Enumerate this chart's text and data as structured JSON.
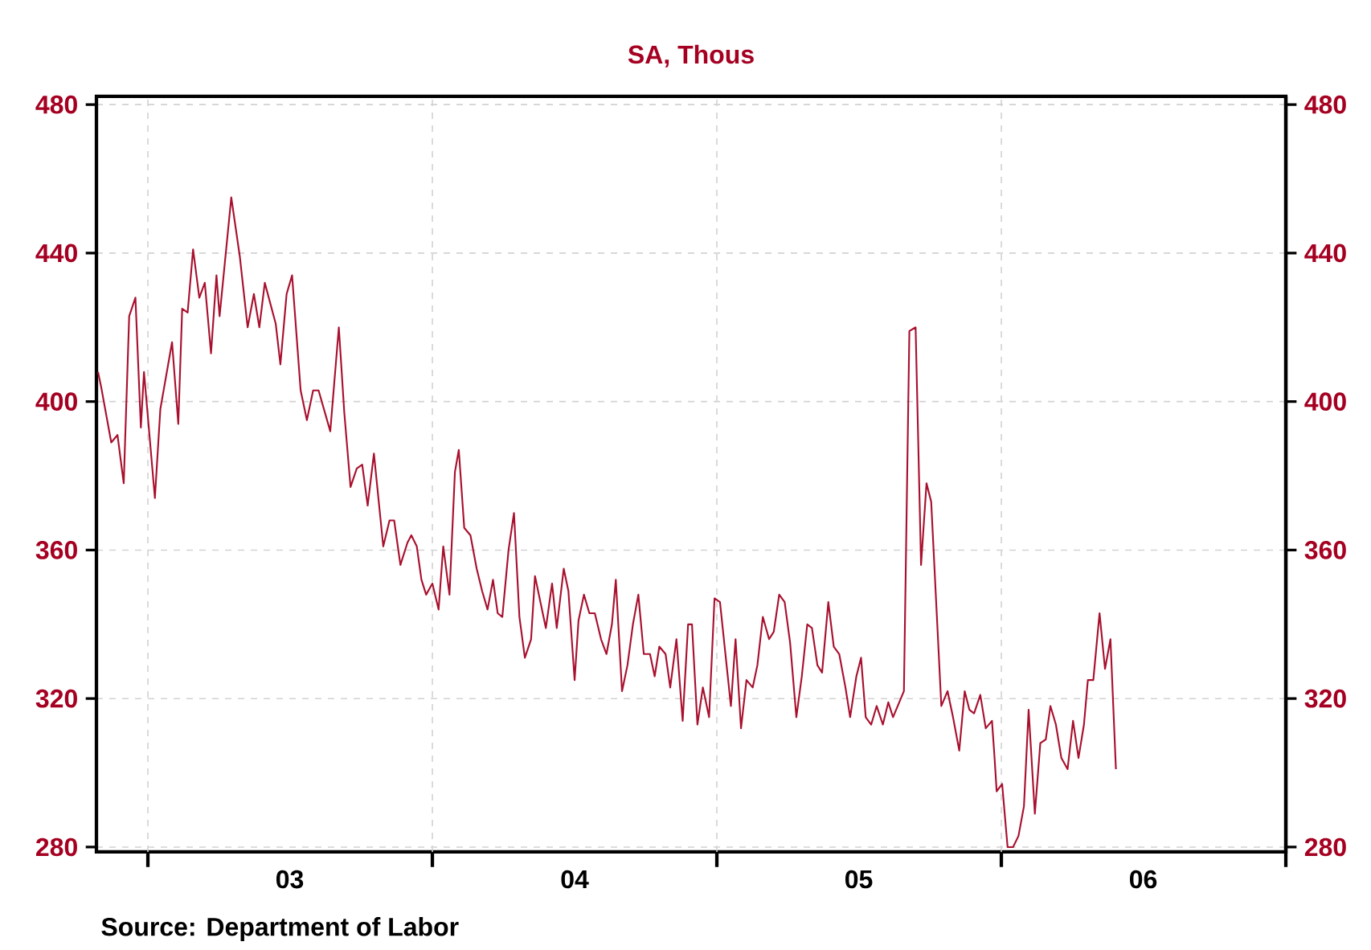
{
  "chart_data": {
    "type": "line",
    "title": "SA, Thous",
    "annotations": [
      "Source:  Department of Labor"
    ],
    "xlim": [
      "2002-10-27",
      "2007-01-01"
    ],
    "xticks": [
      {
        "value": "2003-01-01",
        "label": null
      },
      {
        "value": "2003-07-02",
        "label": "03"
      },
      {
        "value": "2004-01-01",
        "label": null
      },
      {
        "value": "2004-07-02",
        "label": "04"
      },
      {
        "value": "2005-01-01",
        "label": null
      },
      {
        "value": "2005-07-02",
        "label": "05"
      },
      {
        "value": "2006-01-01",
        "label": null
      },
      {
        "value": "2006-07-02",
        "label": "06"
      },
      {
        "value": "2007-01-01",
        "label": null
      }
    ],
    "ylim": [
      278.7,
      482.2
    ],
    "yticks": [
      280,
      320,
      360,
      400,
      440,
      480
    ],
    "y2lim": [
      278.7,
      482.2
    ],
    "y2ticks": [
      280,
      320,
      360,
      400,
      440,
      480
    ],
    "grid": true,
    "series": [
      {
        "color": "#a8102e",
        "x": [
          "2002-10-29",
          "2002-11-02",
          "2002-11-15",
          "2002-11-23",
          "2002-12-01",
          "2002-12-08",
          "2002-12-16",
          "2002-12-23",
          "2002-12-27",
          "2003-01-10",
          "2003-01-17",
          "2003-02-01",
          "2003-02-09",
          "2003-02-14",
          "2003-02-21",
          "2003-02-28",
          "2003-03-08",
          "2003-03-15",
          "2003-03-23",
          "2003-03-30",
          "2003-04-03",
          "2003-04-18",
          "2003-04-29",
          "2003-05-09",
          "2003-05-17",
          "2003-05-24",
          "2003-05-31",
          "2003-06-14",
          "2003-06-20",
          "2003-06-28",
          "2003-07-05",
          "2003-07-16",
          "2003-07-24",
          "2003-08-01",
          "2003-08-08",
          "2003-08-23",
          "2003-09-03",
          "2003-09-10",
          "2003-09-18",
          "2003-09-26",
          "2003-10-03",
          "2003-10-10",
          "2003-10-18",
          "2003-10-30",
          "2003-11-07",
          "2003-11-13",
          "2003-11-21",
          "2003-11-30",
          "2003-12-05",
          "2003-12-12",
          "2003-12-18",
          "2003-12-24",
          "2004-01-01",
          "2004-01-09",
          "2004-01-15",
          "2004-01-23",
          "2004-01-30",
          "2004-02-04",
          "2004-02-11",
          "2004-02-19",
          "2004-02-27",
          "2004-03-05",
          "2004-03-12",
          "2004-03-19",
          "2004-03-25",
          "2004-03-31",
          "2004-04-08",
          "2004-04-15",
          "2004-04-22",
          "2004-04-29",
          "2004-05-07",
          "2004-05-12",
          "2004-05-26",
          "2004-06-03",
          "2004-06-09",
          "2004-06-18",
          "2004-06-24",
          "2004-07-02",
          "2004-07-07",
          "2004-07-14",
          "2004-07-21",
          "2004-07-28",
          "2004-08-05",
          "2004-08-12",
          "2004-08-19",
          "2004-08-24",
          "2004-09-01",
          "2004-09-08",
          "2004-09-15",
          "2004-09-22",
          "2004-09-29",
          "2004-10-07",
          "2004-10-13",
          "2004-10-19",
          "2004-10-27",
          "2004-11-02",
          "2004-11-10",
          "2004-11-18",
          "2004-11-25",
          "2004-11-30",
          "2004-12-07",
          "2004-12-14",
          "2004-12-22",
          "2004-12-29",
          "2005-01-05",
          "2005-01-19",
          "2005-01-25",
          "2005-02-01",
          "2005-02-08",
          "2005-02-16",
          "2005-02-22",
          "2005-03-01",
          "2005-03-09",
          "2005-03-15",
          "2005-03-22",
          "2005-03-29",
          "2005-04-05",
          "2005-04-13",
          "2005-04-20",
          "2005-04-27",
          "2005-05-03",
          "2005-05-10",
          "2005-05-16",
          "2005-05-24",
          "2005-05-31",
          "2005-06-07",
          "2005-06-15",
          "2005-06-21",
          "2005-06-29",
          "2005-07-05",
          "2005-07-11",
          "2005-07-18",
          "2005-07-25",
          "2005-08-02",
          "2005-08-09",
          "2005-08-15",
          "2005-08-23",
          "2005-08-29",
          "2005-09-05",
          "2005-09-13",
          "2005-09-20",
          "2005-09-27",
          "2005-10-03",
          "2005-10-16",
          "2005-10-24",
          "2005-10-31",
          "2005-11-08",
          "2005-11-15",
          "2005-11-21",
          "2005-11-27",
          "2005-12-05",
          "2005-12-12",
          "2005-12-20",
          "2005-12-23",
          "2005-12-26",
          "2006-01-02",
          "2006-01-09",
          "2006-01-16",
          "2006-01-23",
          "2006-01-30",
          "2006-02-05",
          "2006-02-13",
          "2006-02-20",
          "2006-02-27",
          "2006-03-05",
          "2006-03-12",
          "2006-03-19",
          "2006-03-27",
          "2006-04-03",
          "2006-04-10",
          "2006-04-17",
          "2006-04-22",
          "2006-04-29",
          "2006-05-07",
          "2006-05-14",
          "2006-05-21",
          "2006-05-28"
        ],
        "values": [
          408,
          404,
          389,
          391,
          378,
          423,
          428,
          393,
          408,
          374,
          398,
          416,
          394,
          425,
          424,
          441,
          428,
          432,
          413,
          434,
          423,
          455,
          439,
          420,
          429,
          420,
          432,
          421,
          410,
          429,
          434,
          403,
          395,
          403,
          403,
          392,
          420,
          397,
          377,
          382,
          383,
          372,
          386,
          361,
          368,
          368,
          356,
          362,
          364,
          361,
          352,
          348,
          351,
          344,
          361,
          348,
          381,
          387,
          366,
          364,
          355,
          349,
          344,
          352,
          343,
          342,
          360,
          370,
          342,
          331,
          336,
          353,
          339,
          351,
          339,
          355,
          349,
          325,
          341,
          348,
          343,
          343,
          336,
          332,
          340,
          352,
          322,
          329,
          340,
          348,
          332,
          332,
          326,
          334,
          332,
          323,
          336,
          314,
          340,
          340,
          313,
          323,
          315,
          347,
          346,
          318,
          336,
          312,
          325,
          323,
          329,
          342,
          336,
          338,
          348,
          346,
          335,
          315,
          326,
          340,
          339,
          329,
          327,
          346,
          334,
          332,
          323,
          315,
          326,
          331,
          315,
          313,
          318,
          313,
          319,
          315,
          319,
          322,
          419,
          420,
          356,
          378,
          373,
          318,
          322,
          315,
          306,
          322,
          317,
          316,
          321,
          312,
          314,
          305,
          295,
          297,
          280,
          280,
          283,
          291,
          317,
          289,
          308,
          309,
          318,
          313,
          304,
          301,
          314,
          304,
          313,
          325,
          325,
          343,
          328,
          336,
          301
        ]
      }
    ]
  }
}
